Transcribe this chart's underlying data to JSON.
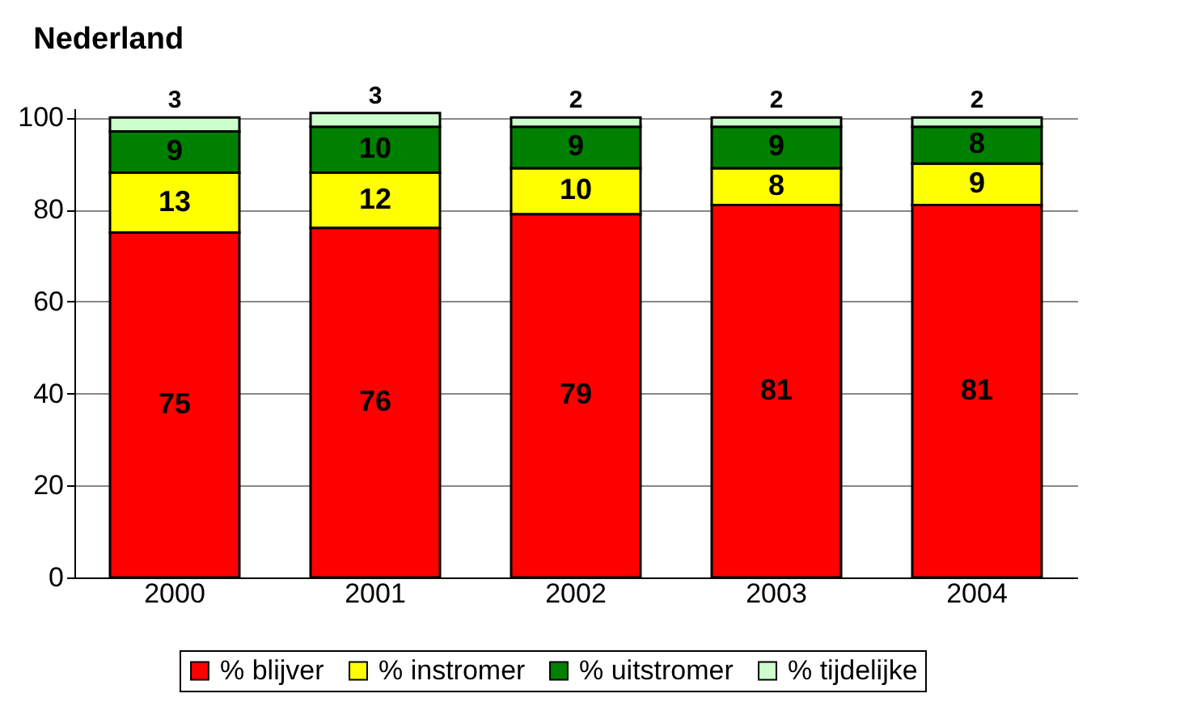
{
  "chart_data": {
    "type": "bar",
    "stacked": true,
    "title": "Nederland",
    "categories": [
      "2000",
      "2001",
      "2002",
      "2003",
      "2004"
    ],
    "series": [
      {
        "name": "% blijver",
        "color": "#ff0000",
        "values": [
          75,
          76,
          79,
          81,
          81
        ]
      },
      {
        "name": "% instromer",
        "color": "#ffff00",
        "values": [
          13,
          12,
          10,
          8,
          9
        ]
      },
      {
        "name": "% uitstromer",
        "color": "#008000",
        "values": [
          9,
          10,
          9,
          9,
          8
        ]
      },
      {
        "name": "% tijdelijke",
        "color": "#ccffcc",
        "values": [
          3,
          3,
          2,
          2,
          2
        ]
      }
    ],
    "ylim": [
      0,
      102
    ],
    "yticks": [
      0,
      20,
      40,
      60,
      80,
      100
    ],
    "grid": "y",
    "legend": "bottom",
    "data_labels": true
  }
}
